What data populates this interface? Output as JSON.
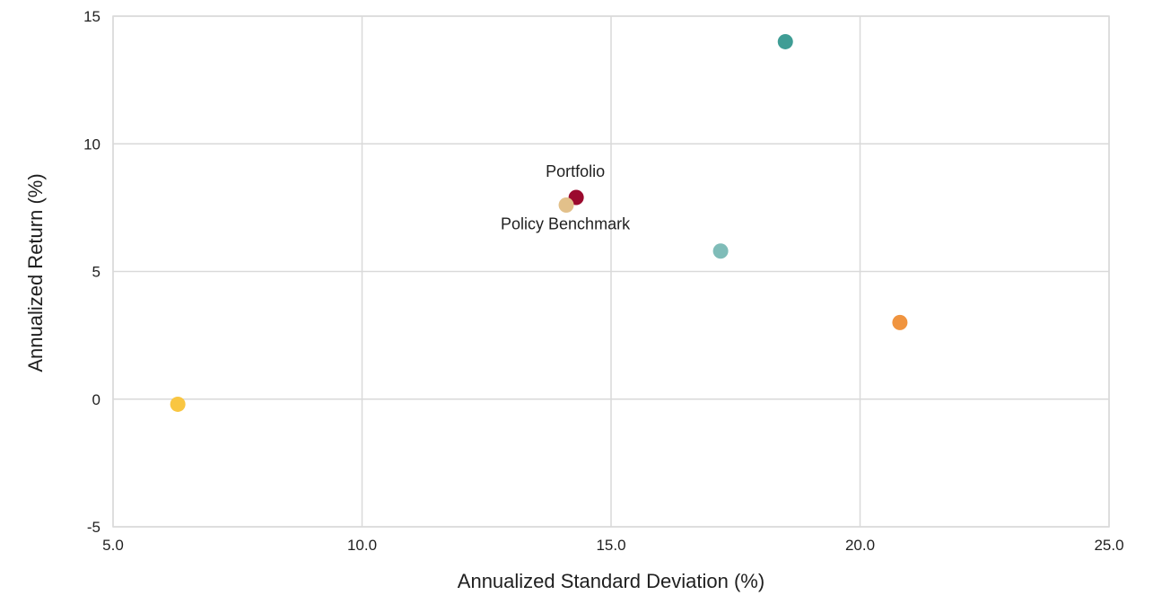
{
  "chart_data": {
    "type": "scatter",
    "title": "",
    "xlabel": "Annualized Standard Deviation (%)",
    "ylabel": "Annualized Return (%)",
    "xlim": [
      5.0,
      25.0
    ],
    "ylim": [
      -5,
      15
    ],
    "x_ticks": [
      "5.0",
      "10.0",
      "15.0",
      "20.0",
      "25.0"
    ],
    "y_ticks": [
      "-5",
      "0",
      "5",
      "10",
      "15"
    ],
    "grid": true,
    "points": [
      {
        "x": 14.3,
        "y": 7.9,
        "label": "Portfolio",
        "color": "#9b0a2e"
      },
      {
        "x": 14.1,
        "y": 7.6,
        "label": "Policy Benchmark",
        "color": "#e2c08a"
      },
      {
        "x": 18.5,
        "y": 14.0,
        "label": "",
        "color": "#3f9d95"
      },
      {
        "x": 17.2,
        "y": 5.8,
        "label": "",
        "color": "#7fbcb8"
      },
      {
        "x": 20.8,
        "y": 3.0,
        "label": "",
        "color": "#f0943f"
      },
      {
        "x": 6.3,
        "y": -0.2,
        "label": "",
        "color": "#f9c642"
      }
    ]
  }
}
